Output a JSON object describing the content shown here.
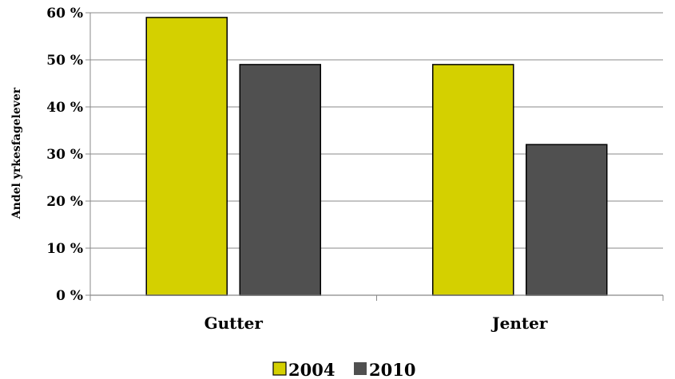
{
  "chart_data": {
    "type": "bar",
    "categories": [
      "Gutter",
      "Jenter"
    ],
    "series": [
      {
        "name": "2004",
        "values": [
          59,
          49
        ],
        "color": "#d4d000"
      },
      {
        "name": "2010",
        "values": [
          49,
          32
        ],
        "color": "#505050"
      }
    ],
    "ylabel": "Andel yrkesfagelever",
    "ylim": [
      0,
      60
    ],
    "yticks": [
      "0 %",
      "10 %",
      "20 %",
      "30 %",
      "40 %",
      "50 %",
      "60 %"
    ],
    "grid": true,
    "legend": "bottom"
  }
}
